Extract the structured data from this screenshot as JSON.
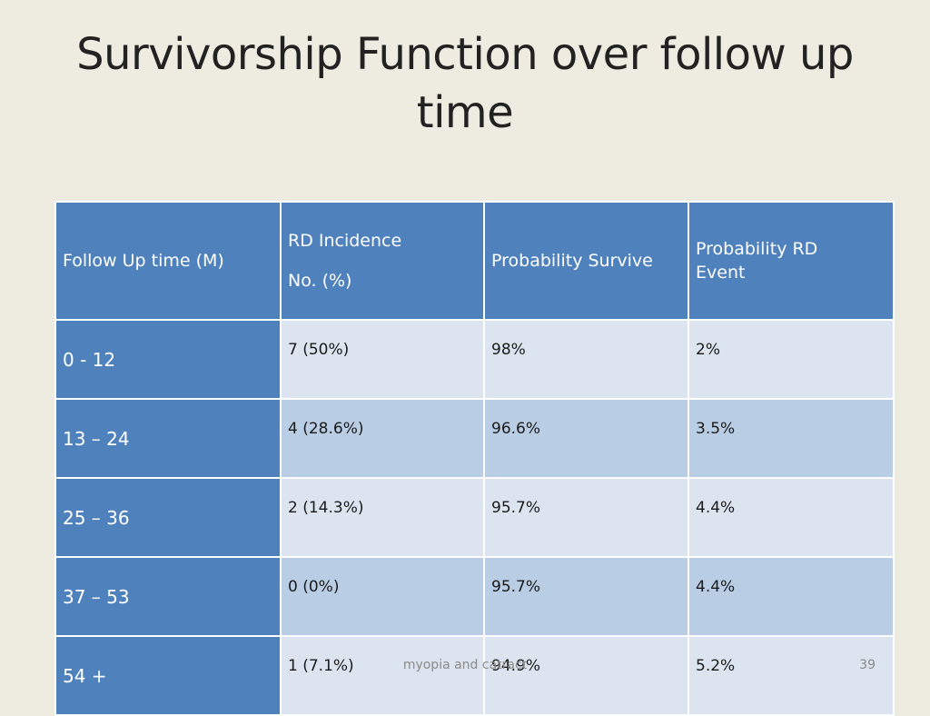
{
  "slide": {
    "title": "Survivorship Function over follow up time"
  },
  "table": {
    "headers": {
      "col1": "Follow Up time (M)",
      "col2_line1": "RD Incidence",
      "col2_line2": "No. (%)",
      "col3": "Probability Survive",
      "col4_line1": "Probability RD",
      "col4_line2": "Event"
    },
    "rows": [
      {
        "time": "0 - 12",
        "incidence": "7 (50%)",
        "survive": "98%",
        "event": "2%"
      },
      {
        "time": "13 – 24",
        "incidence": "4 (28.6%)",
        "survive": "96.6%",
        "event": "3.5%"
      },
      {
        "time": "25 – 36",
        "incidence": "2 (14.3%)",
        "survive": "95.7%",
        "event": "4.4%"
      },
      {
        "time": "37 – 53",
        "incidence": "0 (0%)",
        "survive": "95.7%",
        "event": "4.4%"
      },
      {
        "time": "54 +",
        "incidence": "1 (7.1%)",
        "survive": "94.9%",
        "event": "5.2%"
      }
    ]
  },
  "footer": {
    "text": "myopia and catract",
    "page_number": "39"
  },
  "colors": {
    "background": "#EEEBE0",
    "header_blue": "#4F81BD",
    "row_light": "#DCE4EF",
    "row_dark": "#B9CDE5"
  }
}
